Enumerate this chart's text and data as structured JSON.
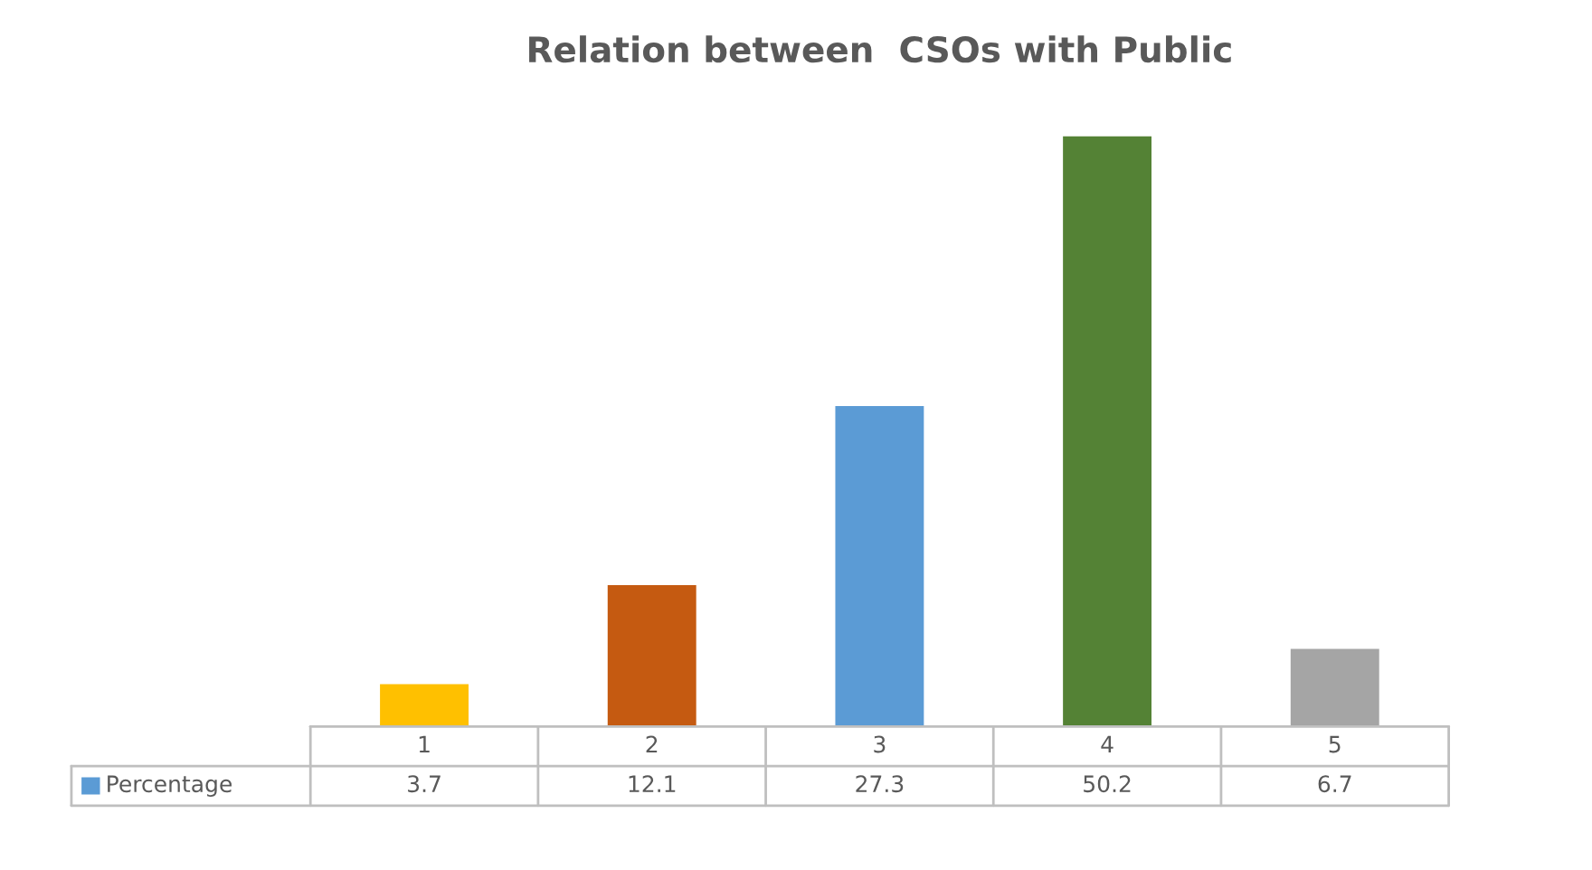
{
  "chart_data": {
    "type": "bar",
    "title": "Relation between  CSOs with Public",
    "categories": [
      "1",
      "2",
      "3",
      "4",
      "5"
    ],
    "series": [
      {
        "name": "Percentage",
        "color": "#5b9bd5",
        "colors": [
          "#ffc000",
          "#c55a11",
          "#5b9bd5",
          "#548235",
          "#a5a5a5"
        ],
        "values": [
          3.7,
          12.1,
          27.3,
          50.2,
          6.7
        ]
      }
    ],
    "data_labels": true
  }
}
